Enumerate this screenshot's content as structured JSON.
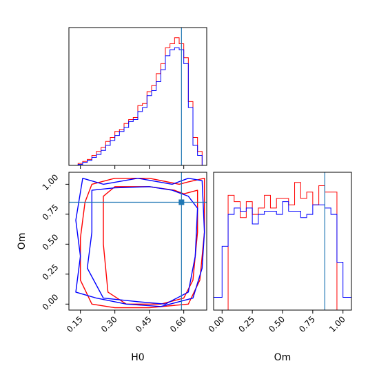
{
  "chart_data": [
    {
      "type": "step-histogram",
      "panel": "H0 marginal",
      "xlim": [
        0.1,
        0.7
      ],
      "bin_edges": [
        0.1,
        0.12,
        0.14,
        0.16,
        0.18,
        0.2,
        0.22,
        0.24,
        0.26,
        0.28,
        0.3,
        0.32,
        0.34,
        0.36,
        0.38,
        0.4,
        0.42,
        0.44,
        0.46,
        0.48,
        0.5,
        0.52,
        0.54,
        0.56,
        0.58,
        0.6,
        0.62,
        0.64,
        0.66,
        0.68,
        0.7
      ],
      "series": [
        {
          "color": "#ff0000",
          "values": [
            0,
            0,
            2,
            4,
            6,
            10,
            14,
            18,
            24,
            28,
            34,
            36,
            42,
            46,
            48,
            60,
            62,
            74,
            80,
            92,
            102,
            118,
            122,
            128,
            122,
            108,
            64,
            28,
            14,
            0
          ]
        },
        {
          "color": "#0000ff",
          "values": [
            0,
            0,
            1,
            3,
            5,
            8,
            11,
            15,
            20,
            25,
            30,
            34,
            38,
            44,
            46,
            54,
            58,
            70,
            75,
            84,
            96,
            110,
            116,
            118,
            116,
            102,
            58,
            20,
            10,
            0
          ]
        }
      ],
      "truth_line": {
        "x": 0.59,
        "color": "#1f77b4"
      },
      "show_y_ticks": false
    },
    {
      "type": "contour",
      "panel": "Om vs H0",
      "xlabel": "H0",
      "ylabel": "Om",
      "xlim": [
        0.1,
        0.7
      ],
      "ylim": [
        -0.05,
        1.1
      ],
      "xticks": [
        "0.15",
        "0.30",
        "0.45",
        "0.60"
      ],
      "yticks": [
        "0.00",
        "0.25",
        "0.50",
        "0.75",
        "1.00"
      ],
      "xtick_values": [
        0.15,
        0.3,
        0.45,
        0.6
      ],
      "ytick_values": [
        0.0,
        0.25,
        0.5,
        0.75,
        1.0
      ],
      "series": [
        {
          "color": "#ff0000",
          "contours": [
            [
              [
                0.17,
                0.85
              ],
              [
                0.2,
                1.0
              ],
              [
                0.3,
                1.05
              ],
              [
                0.45,
                1.05
              ],
              [
                0.58,
                1.0
              ],
              [
                0.62,
                1.02
              ],
              [
                0.69,
                1.05
              ],
              [
                0.69,
                0.6
              ],
              [
                0.67,
                0.2
              ],
              [
                0.62,
                0.0
              ],
              [
                0.45,
                -0.03
              ],
              [
                0.3,
                -0.03
              ],
              [
                0.2,
                0.0
              ],
              [
                0.15,
                0.2
              ],
              [
                0.15,
                0.55
              ],
              [
                0.17,
                0.85
              ]
            ],
            [
              [
                0.25,
                0.9
              ],
              [
                0.3,
                0.98
              ],
              [
                0.45,
                0.98
              ],
              [
                0.56,
                0.95
              ],
              [
                0.6,
                0.92
              ],
              [
                0.66,
                0.95
              ],
              [
                0.66,
                0.6
              ],
              [
                0.64,
                0.2
              ],
              [
                0.6,
                0.05
              ],
              [
                0.5,
                0.0
              ],
              [
                0.35,
                0.0
              ],
              [
                0.27,
                0.1
              ],
              [
                0.25,
                0.5
              ],
              [
                0.25,
                0.9
              ]
            ]
          ]
        },
        {
          "color": "#0000ff",
          "contours": [
            [
              [
                0.16,
                1.05
              ],
              [
                0.25,
                1.0
              ],
              [
                0.4,
                1.05
              ],
              [
                0.55,
                1.0
              ],
              [
                0.62,
                1.05
              ],
              [
                0.68,
                1.03
              ],
              [
                0.69,
                0.6
              ],
              [
                0.68,
                0.3
              ],
              [
                0.64,
                0.05
              ],
              [
                0.5,
                -0.02
              ],
              [
                0.35,
                0.0
              ],
              [
                0.22,
                0.05
              ],
              [
                0.13,
                0.1
              ],
              [
                0.15,
                0.4
              ],
              [
                0.13,
                0.7
              ],
              [
                0.16,
                1.05
              ]
            ],
            [
              [
                0.2,
                0.95
              ],
              [
                0.3,
                0.97
              ],
              [
                0.45,
                0.98
              ],
              [
                0.55,
                0.95
              ],
              [
                0.62,
                0.9
              ],
              [
                0.66,
                0.8
              ],
              [
                0.65,
                0.4
              ],
              [
                0.62,
                0.1
              ],
              [
                0.52,
                0.0
              ],
              [
                0.4,
                0.02
              ],
              [
                0.25,
                0.05
              ],
              [
                0.18,
                0.3
              ],
              [
                0.2,
                0.6
              ],
              [
                0.2,
                0.95
              ]
            ]
          ]
        }
      ],
      "truth_point": {
        "x": 0.59,
        "y": 0.85,
        "color": "#1f77b4"
      }
    },
    {
      "type": "step-histogram",
      "panel": "Om marginal",
      "xlabel": "Om",
      "xlim": [
        -0.07,
        1.07
      ],
      "xticks": [
        "0.00",
        "0.25",
        "0.50",
        "0.75",
        "1.00"
      ],
      "xtick_values": [
        0.0,
        0.25,
        0.5,
        0.75,
        1.0
      ],
      "bin_edges": [
        -0.07,
        -0.01,
        0.0,
        0.05,
        0.1,
        0.15,
        0.2,
        0.25,
        0.3,
        0.35,
        0.4,
        0.45,
        0.5,
        0.55,
        0.6,
        0.65,
        0.7,
        0.75,
        0.8,
        0.85,
        0.9,
        0.95,
        1.0,
        1.05,
        1.07
      ],
      "series": [
        {
          "color": "#ff0000",
          "values": [
            0,
            0,
            0,
            36,
            34,
            29,
            34,
            30,
            32,
            36,
            32,
            35,
            35,
            33,
            40,
            35,
            37,
            33,
            39,
            37,
            37,
            0,
            0,
            0
          ]
        },
        {
          "color": "#0000ff",
          "values": [
            4,
            4,
            20,
            30,
            32,
            31,
            32,
            27,
            30,
            31,
            31,
            30,
            34,
            31,
            31,
            29,
            30,
            33,
            33,
            32,
            30,
            15,
            4,
            4
          ]
        }
      ],
      "truth_line": {
        "x": 0.85,
        "color": "#1f77b4"
      },
      "show_y_ticks": false
    }
  ]
}
